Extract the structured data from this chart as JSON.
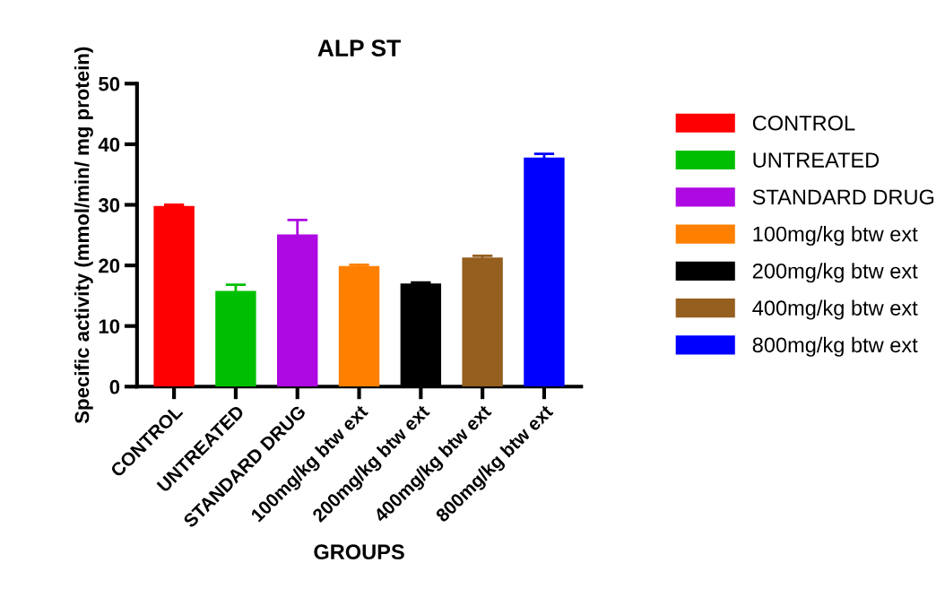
{
  "chart_data": {
    "type": "bar",
    "title": "ALP ST",
    "xlabel": "GROUPS",
    "ylabel": "Specific activity (mmol/min/ mg protein)",
    "categories": [
      "CONTROL",
      "UNTREATED",
      "STANDARD DRUG",
      "100mg/kg btw ext",
      "200mg/kg btw ext",
      "400mg/kg btw ext",
      "800mg/kg btw ext"
    ],
    "series": [
      {
        "name": "CONTROL",
        "color": "#ff0000",
        "values": [
          29.8,
          null,
          null,
          null,
          null,
          null,
          null
        ],
        "errors": [
          0.2,
          null,
          null,
          null,
          null,
          null,
          null
        ]
      },
      {
        "name": "UNTREATED",
        "color": "#00bf00",
        "values": [
          null,
          15.8,
          null,
          null,
          null,
          null,
          null
        ],
        "errors": [
          null,
          1.0,
          null,
          null,
          null,
          null,
          null
        ]
      },
      {
        "name": "STANDARD DRUG",
        "color": "#ae08e3",
        "values": [
          null,
          null,
          25.1,
          null,
          null,
          null,
          null
        ],
        "errors": [
          null,
          null,
          2.4,
          null,
          null,
          null,
          null
        ]
      },
      {
        "name": "100mg/kg btw ext",
        "color": "#ff8000",
        "values": [
          null,
          null,
          null,
          19.9,
          null,
          null,
          null
        ],
        "errors": [
          null,
          null,
          null,
          0.2,
          null,
          null,
          null
        ]
      },
      {
        "name": "200mg/kg btw ext",
        "color": "#000000",
        "values": [
          null,
          null,
          null,
          null,
          17.0,
          null,
          null
        ],
        "errors": [
          null,
          null,
          null,
          null,
          0.2,
          null,
          null
        ]
      },
      {
        "name": "400mg/kg btw ext",
        "color": "#955f20",
        "values": [
          null,
          null,
          null,
          null,
          null,
          21.3,
          null
        ],
        "errors": [
          null,
          null,
          null,
          null,
          null,
          0.3,
          null
        ]
      },
      {
        "name": "800mg/kg btw ext",
        "color": "#0000ff",
        "values": [
          null,
          null,
          null,
          null,
          null,
          null,
          37.8
        ],
        "errors": [
          null,
          null,
          null,
          null,
          null,
          null,
          0.6
        ]
      }
    ],
    "ylim": [
      0,
      50
    ],
    "yticks": [
      0,
      10,
      20,
      30,
      40,
      50
    ],
    "grid": false,
    "legend": "right"
  }
}
